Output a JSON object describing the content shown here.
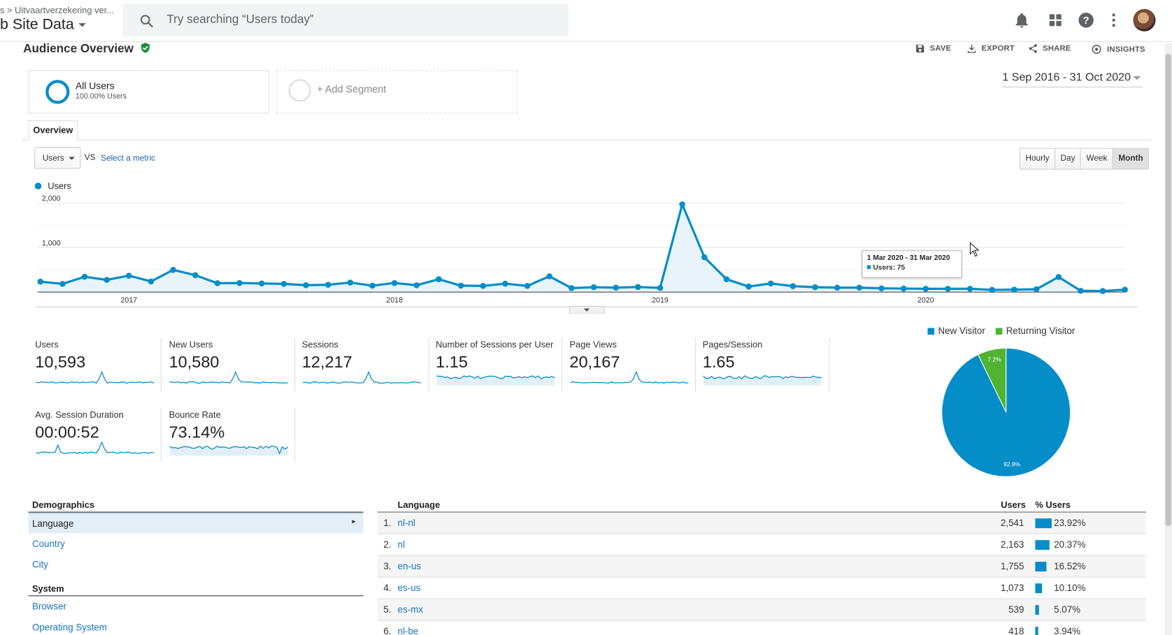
{
  "header": {
    "breadcrumb": "s > Uitvaartverzekering ver...",
    "property": "b Site Data",
    "search_placeholder": "Try searching “Users today”",
    "icons": [
      "bell-icon",
      "apps-grid-icon",
      "help-icon",
      "more-vert-icon",
      "avatar"
    ]
  },
  "page": {
    "title": "Audience Overview",
    "actions": [
      "SAVE",
      "EXPORT",
      "SHARE",
      "INSIGHTS"
    ],
    "date_range": "1 Sep 2016 - 31 Oct 2020"
  },
  "segments": {
    "all_users": "All Users",
    "all_users_sub": "100.00% Users",
    "add_segment": "+ Add Segment"
  },
  "tabs": {
    "overview": "Overview"
  },
  "controls": {
    "metric": "Users",
    "vs": "VS",
    "select_metric": "Select a metric",
    "granularity": [
      "Hourly",
      "Day",
      "Week",
      "Month"
    ],
    "active_granularity": "Month"
  },
  "tooltip": {
    "title": "1 Mar 2020 - 31 Mar 2020",
    "line": "Users: 75"
  },
  "colors": {
    "accent": "#058dc7",
    "returning": "#50b432",
    "link": "#1a73c8",
    "verified": "#1e8e3e"
  },
  "chart_data": {
    "type": "line",
    "legend": "Users",
    "x_ticks": [
      "2017",
      "2018",
      "2019",
      "2020"
    ],
    "y_ticks": [
      "1,000",
      "2,000"
    ],
    "ylim": [
      0,
      2000
    ],
    "series": [
      {
        "name": "Users",
        "x_start": "2016-09",
        "values": [
          235,
          185,
          345,
          275,
          370,
          240,
          500,
          380,
          200,
          205,
          195,
          185,
          155,
          165,
          215,
          145,
          205,
          155,
          290,
          145,
          140,
          190,
          140,
          355,
          90,
          110,
          100,
          115,
          95,
          1975,
          785,
          290,
          125,
          195,
          135,
          110,
          100,
          100,
          85,
          80,
          75,
          75,
          75,
          50,
          55,
          65,
          340,
          30,
          25,
          55
        ]
      }
    ],
    "pie": {
      "type": "pie",
      "slices": [
        {
          "name": "New Visitor",
          "value": 92.8,
          "label": "92.8%"
        },
        {
          "name": "Returning Visitor",
          "value": 7.2,
          "label": "7.2%"
        }
      ]
    }
  },
  "metrics": [
    {
      "label": "Users",
      "value": "10,593"
    },
    {
      "label": "New Users",
      "value": "10,580"
    },
    {
      "label": "Sessions",
      "value": "12,217"
    },
    {
      "label": "Number of Sessions per User",
      "value": "1.15"
    },
    {
      "label": "Page Views",
      "value": "20,167"
    },
    {
      "label": "Pages/Session",
      "value": "1.65"
    },
    {
      "label": "Avg. Session Duration",
      "value": "00:00:52"
    },
    {
      "label": "Bounce Rate",
      "value": "73.14%"
    }
  ],
  "demographics": {
    "heading": "Demographics",
    "items": [
      "Language",
      "Country",
      "City"
    ],
    "system_heading": "System",
    "system_items": [
      "Browser",
      "Operating System"
    ]
  },
  "language_table": {
    "col_language": "Language",
    "col_users": "Users",
    "col_pct": "% Users",
    "rows": [
      {
        "n": "1.",
        "name": "nl-nl",
        "users": "2,541",
        "pct": "23.92%",
        "share": 23.92
      },
      {
        "n": "2.",
        "name": "nl",
        "users": "2,163",
        "pct": "20.37%",
        "share": 20.37
      },
      {
        "n": "3.",
        "name": "en-us",
        "users": "1,755",
        "pct": "16.52%",
        "share": 16.52
      },
      {
        "n": "4.",
        "name": "es-us",
        "users": "1,073",
        "pct": "10.10%",
        "share": 10.1
      },
      {
        "n": "5.",
        "name": "es-mx",
        "users": "539",
        "pct": "5.07%",
        "share": 5.07
      },
      {
        "n": "6.",
        "name": "nl-be",
        "users": "418",
        "pct": "3.94%",
        "share": 3.94
      }
    ]
  }
}
